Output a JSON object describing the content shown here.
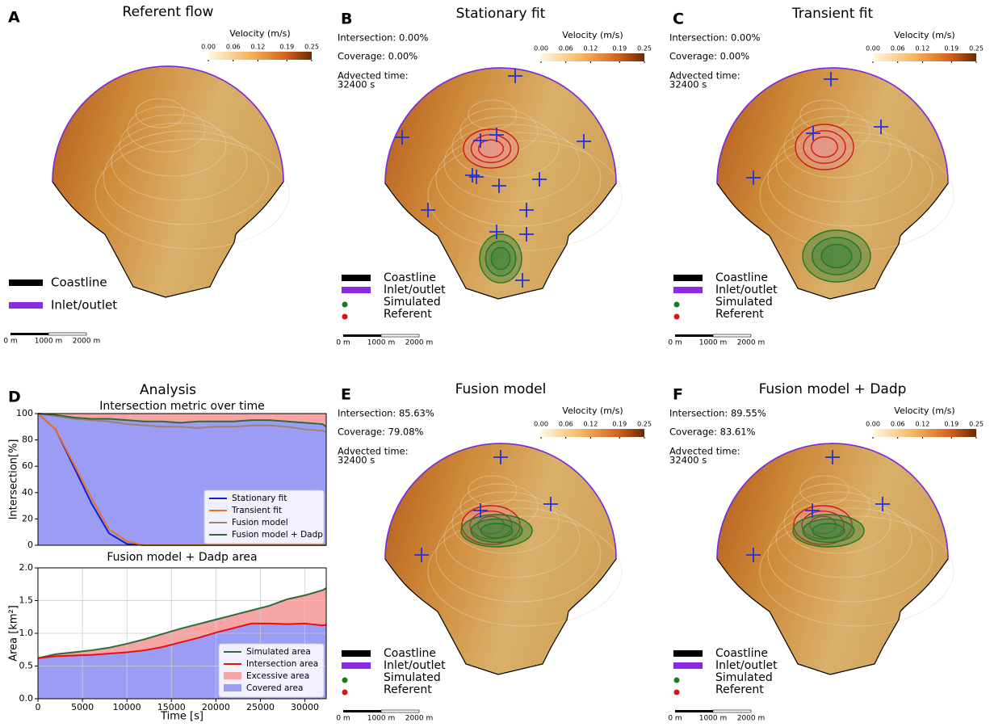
{
  "panels": [
    {
      "label": "A",
      "title": "Referent flow",
      "legend": [
        {
          "name": "Coastline",
          "color": "#000000"
        },
        {
          "name": "Inlet/outlet",
          "color": "#8a2be2"
        }
      ]
    },
    {
      "label": "B",
      "title": "Stationary fit",
      "stats": [
        "Intersection: 0.00%",
        "Coverage: 0.00%"
      ],
      "advected": [
        "Advected time:",
        "32400 s"
      ],
      "legend": [
        {
          "name": "Coastline",
          "color": "#000000"
        },
        {
          "name": "Inlet/outlet",
          "color": "#8a2be2"
        },
        {
          "name": "Simulated",
          "color": "#1a7a1a"
        },
        {
          "name": "Referent",
          "color": "#e01010"
        }
      ]
    },
    {
      "label": "C",
      "title": "Transient fit",
      "stats": [
        "Intersection: 0.00%",
        "Coverage: 0.00%"
      ],
      "advected": [
        "Advected time:",
        "32400 s"
      ],
      "legend": [
        {
          "name": "Coastline",
          "color": "#000000"
        },
        {
          "name": "Inlet/outlet",
          "color": "#8a2be2"
        },
        {
          "name": "Simulated",
          "color": "#1a7a1a"
        },
        {
          "name": "Referent",
          "color": "#e01010"
        }
      ]
    },
    {
      "label": "E",
      "title": "Fusion model",
      "stats": [
        "Intersection: 85.63%",
        "Coverage: 79.08%"
      ],
      "advected": [
        "Advected time:",
        "32400 s"
      ],
      "legend": [
        {
          "name": "Coastline",
          "color": "#000000"
        },
        {
          "name": "Inlet/outlet",
          "color": "#8a2be2"
        },
        {
          "name": "Simulated",
          "color": "#1a7a1a"
        },
        {
          "name": "Referent",
          "color": "#e01010"
        }
      ]
    },
    {
      "label": "F",
      "title": "Fusion model + Dadp",
      "stats": [
        "Intersection: 89.55%",
        "Coverage: 83.61%"
      ],
      "advected": [
        "Advected time:",
        "32400 s"
      ],
      "legend": [
        {
          "name": "Coastline",
          "color": "#000000"
        },
        {
          "name": "Inlet/outlet",
          "color": "#8a2be2"
        },
        {
          "name": "Simulated",
          "color": "#1a7a1a"
        },
        {
          "name": "Referent",
          "color": "#e01010"
        }
      ]
    }
  ],
  "colorbar": {
    "title": "Velocity (m/s)",
    "lim": [
      0,
      0.25
    ],
    "ticks": [
      {
        "value": 0,
        "label": "0.00"
      },
      {
        "value": 0.06,
        "label": "0.06"
      },
      {
        "value": 0.12,
        "label": "0.12"
      },
      {
        "value": 0.19,
        "label": "0.19"
      },
      {
        "value": 0.25,
        "label": "0.25"
      }
    ]
  },
  "scale_bar": {
    "labels": [
      "0 m",
      "1000 m",
      "2000 m"
    ]
  },
  "analysis": {
    "label": "D",
    "title": "Analysis"
  },
  "chart_data": [
    {
      "type": "line",
      "title": "Intersection metric over time",
      "y_label": "Intersection[%]",
      "x": [
        0,
        2000,
        4000,
        6000,
        8000,
        10000,
        12000,
        14000,
        16000,
        18000,
        20000,
        22000,
        24000,
        26000,
        28000,
        30000,
        32000,
        32400
      ],
      "xlim": [
        0,
        32400
      ],
      "ylim": [
        0,
        100
      ],
      "yticks": [
        0,
        20,
        40,
        60,
        80,
        100
      ],
      "areas": [
        {
          "color": "#9b9df5"
        },
        {
          "color": "#f6a4a4"
        }
      ],
      "series": [
        {
          "name": "Stationary fit",
          "color": "#0a1fe0",
          "values": [
            100,
            88,
            60,
            32,
            9,
            1,
            0,
            0,
            0,
            0,
            0,
            0,
            0,
            0,
            0,
            0,
            0,
            0
          ]
        },
        {
          "name": "Transient fit",
          "color": "#f07020",
          "values": [
            100,
            88,
            62,
            36,
            12,
            3,
            0,
            0,
            0,
            0,
            0,
            0,
            0,
            0,
            0,
            0,
            0,
            0
          ]
        },
        {
          "name": "Fusion model",
          "color": "#a08070",
          "values": [
            100,
            98,
            96,
            95,
            94,
            92,
            91,
            90,
            90,
            89,
            90,
            90,
            91,
            91,
            90,
            88,
            87,
            86
          ]
        },
        {
          "name": "Fusion model + Dadp",
          "color": "#2e6b3a",
          "values": [
            100,
            99,
            97,
            96,
            96,
            95,
            94,
            94,
            93,
            94,
            94,
            94,
            95,
            95,
            94,
            93,
            92,
            90
          ]
        }
      ]
    },
    {
      "type": "area",
      "title": "Fusion model + Dadp area",
      "x_label": "Time [s]",
      "y_label": "Area [km²]",
      "x": [
        0,
        2000,
        4000,
        6000,
        8000,
        10000,
        12000,
        14000,
        16000,
        18000,
        20000,
        22000,
        24000,
        26000,
        28000,
        30000,
        32000,
        32400
      ],
      "xlim": [
        0,
        32400
      ],
      "ylim": [
        0,
        2
      ],
      "grid": true,
      "xticks": [
        0,
        5000,
        10000,
        15000,
        20000,
        25000,
        30000
      ],
      "yticks": [
        {
          "value": 0,
          "label": "0.0"
        },
        {
          "value": 0.5,
          "label": "0.5"
        },
        {
          "value": 1,
          "label": "1.0"
        },
        {
          "value": 1.5,
          "label": "1.5"
        },
        {
          "value": 2,
          "label": "2.0"
        }
      ],
      "series": [
        {
          "name": "Simulated area",
          "color": "#2e6b3a",
          "values": [
            0.62,
            0.68,
            0.71,
            0.74,
            0.78,
            0.84,
            0.91,
            0.99,
            1.07,
            1.14,
            1.21,
            1.28,
            1.35,
            1.42,
            1.52,
            1.58,
            1.66,
            1.69
          ]
        },
        {
          "name": "Intersection area",
          "color": "#e81010",
          "values": [
            0.62,
            0.65,
            0.66,
            0.67,
            0.69,
            0.71,
            0.74,
            0.79,
            0.86,
            0.93,
            1.01,
            1.08,
            1.15,
            1.15,
            1.14,
            1.15,
            1.12,
            1.13
          ]
        }
      ],
      "areas": [
        {
          "name": "Excessive area",
          "color": "#f6a4a4"
        },
        {
          "name": "Covered area",
          "color": "#9b9df5"
        }
      ]
    }
  ]
}
